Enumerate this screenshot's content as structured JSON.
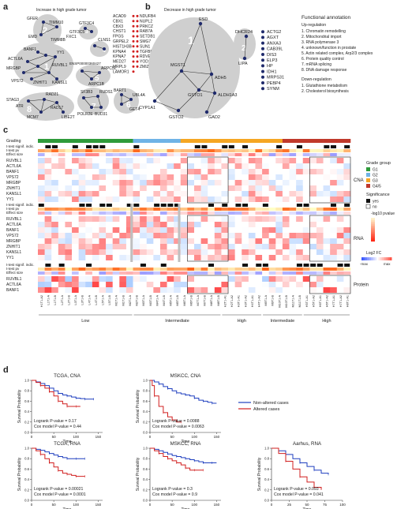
{
  "panel_labels": {
    "a": "a",
    "b": "b",
    "c": "c",
    "d": "d"
  },
  "panel_a": {
    "title": "Increase in high grade tumor",
    "cluster_numbers": [
      "2",
      "1",
      "5",
      "8",
      "3",
      "4",
      "7",
      "6"
    ],
    "nodes": [
      "GFER",
      "TIMM10",
      "TIMM8B",
      "EMD",
      "FXC1",
      "GTF3C4",
      "GTF3C5",
      "CLNS1",
      "BANF1",
      "YY1",
      "RUVBL1",
      "ACTL6A",
      "MRGBP",
      "VPS72",
      "ZNHIT1",
      "KANSL1",
      "ENSP00000360427",
      "ARPC5L",
      "ARPC1B",
      "STAG3",
      "RAD21",
      "ATR",
      "RAD17",
      "MCM7",
      "LIBE2T",
      "SF3B3",
      "POLR2E",
      "RUDS1",
      "BART1",
      "BUD31",
      "UBL4A",
      "GET4"
    ],
    "annotations_col1": [
      "ACAD9",
      "CBX1",
      "CBX3",
      "CHST1",
      "FPGS",
      "GRPEL2",
      "HIST1H3B",
      "KPNA4",
      "KPNA7",
      "MED27",
      "MRPL9",
      "LAMOR1"
    ],
    "annotations_col2": [
      "NDUFB4",
      "NUPL2",
      "PRKCZ",
      "RAB7A",
      "SETDB1",
      "SMG7",
      "SUN1",
      "TGFBR1",
      "RDVE2",
      "YOD1",
      "ZMIZ2"
    ]
  },
  "panel_b": {
    "title": "Decrease in high grade tumor",
    "cluster_numbers": [
      "1",
      "2"
    ],
    "nodes": [
      "ESD",
      "MGST1",
      "ADH5",
      "GSTO1",
      "CYP1A1",
      "GSTO2",
      "ALDH1A3",
      "GAD2",
      "DHCR24",
      "LIPA"
    ],
    "legend_genes": [
      "ACTG2",
      "AGXT",
      "ANXA3",
      "CAB39L",
      "DIS3",
      "ELP3",
      "HP",
      "IDH1",
      "MRPS31",
      "PEBP4",
      "SYNM"
    ],
    "func_title": "Functional annotation",
    "up_label": "Up-regulation",
    "up_items": [
      "1. Chromatin remodelling",
      "2. Mitochondrial import",
      "3. RNA polymerase 3",
      "4. unknown/function in prostate",
      "5. Actin related complex, Arp2/3 complex",
      "6. Protein quality control",
      "7. mRNA splicing",
      "8. DNA damage response"
    ],
    "down_label": "Down-regulation",
    "down_items": [
      "1. Glutathione metabolism",
      "2. Cholesterol biosynthesis"
    ]
  },
  "panel_c": {
    "row_grading": "Grading",
    "row_sig": "t-test signif. indic.",
    "row_pv": "t-test pv",
    "row_es": "Effect size",
    "genes_cna": [
      "RUVBL1",
      "ACTL6A",
      "BANF1",
      "VPS72",
      "MRGBP",
      "ZNHIT1",
      "KANSL1",
      "YY1"
    ],
    "genes_rna": [
      "RUVBL1",
      "ACTL6A",
      "BANF1",
      "VPS72",
      "MRGBP",
      "ZNHIT1",
      "KANSL1",
      "YY1"
    ],
    "genes_protein": [
      "RUVBL1",
      "ACTL6A",
      "BANF1"
    ],
    "block_cna": "CNA",
    "block_rna": "RNA",
    "block_protein": "Protein",
    "grade_group_title": "Grade group",
    "grade_groups": [
      {
        "label": "G1",
        "color": "#2e9b3a"
      },
      {
        "label": "G2",
        "color": "#6fb3e6"
      },
      {
        "label": "G3",
        "color": "#f5a623"
      },
      {
        "label": "G4/5",
        "color": "#c0392b"
      }
    ],
    "significance_title": "Significance",
    "sig_yes": "yes",
    "sig_no": "no",
    "pval_label": "-log10 pvalue",
    "fc_label": "Log2 FC",
    "fc_min": "-max",
    "fc_max": "max",
    "bottom_groups": [
      "Low",
      "Intermediate",
      "High",
      "Intermediate",
      "High"
    ],
    "sample_labels": [
      "H1T1-A2",
      "L1T1-A",
      "L1T1-B",
      "L2T1-A",
      "L2T1-B",
      "L3T1-A",
      "L3T1-B",
      "L4T1-A",
      "L4T1-B",
      "L5T1-A",
      "L5T1-B",
      "M1T1-A",
      "M1T1-B",
      "M2T1-A",
      "M2T1-B",
      "M3T1-A",
      "M3T1-B",
      "M4T1-A",
      "M4T1-B",
      "M5T1-A",
      "M5T1-B",
      "M6T1-A",
      "M6T1-B",
      "M7T1-A",
      "M7T1-B",
      "M8T1-A",
      "M8T1-B",
      "H2T1-A1",
      "H2T1-A2",
      "H3T1-A1",
      "H3T1-A2",
      "H4T1-A1",
      "H4T1-A2",
      "M9T1-A",
      "M9T1-B",
      "M10T1-A",
      "M10T1-B",
      "M11T1-A",
      "M11T1-B",
      "H5T1-A1",
      "H5T1-A2",
      "H6T1-A1",
      "H6T1-A2",
      "H7T1-A1",
      "H7T1-A2",
      "H8T1-A1"
    ]
  },
  "panel_d": {
    "legend_non_altered": "Non-altered cases",
    "legend_altered": "Altered cases",
    "x_label": "Time",
    "y_label": "Survival Probability",
    "plots": [
      {
        "title": "TCGA, CNA",
        "logrank": "Logrank P-value = 0.17",
        "cox": "Cox model P-value = 0.44",
        "x_ticks": [
          "0",
          "50",
          "100",
          "150"
        ],
        "y_ticks": [
          "0.0",
          "0.2",
          "0.4",
          "0.6",
          "0.8",
          "1.0"
        ]
      },
      {
        "title": "MSKCC, CNA",
        "logrank": "Logrank P-value = 0.0088",
        "cox": "Cox model P-value = 0.0063",
        "x_ticks": [
          "0",
          "50",
          "100",
          "150"
        ],
        "y_ticks": [
          "0.0",
          "0.2",
          "0.4",
          "0.6",
          "0.8",
          "1.0"
        ]
      },
      {
        "title": "TCGA, RNA",
        "logrank": "Logrank P-value = 0.00021",
        "cox": "Cox model P-value = 0.0001",
        "x_ticks": [
          "0",
          "50",
          "100",
          "150"
        ],
        "y_ticks": [
          "0.0",
          "0.2",
          "0.4",
          "0.6",
          "0.8",
          "1.0"
        ]
      },
      {
        "title": "MSKCC, RNA",
        "logrank": "Logrank P-value = 0.3",
        "cox": "Cox model P-value = 0.9",
        "x_ticks": [
          "0",
          "50",
          "100",
          "150"
        ],
        "y_ticks": [
          "0.0",
          "0.2",
          "0.4",
          "0.6",
          "0.8",
          "1.0"
        ]
      },
      {
        "title": "Aarhus, RNA",
        "logrank": "Logrank P-value = 0.093",
        "cox": "Cox model P-value = 0.041",
        "x_ticks": [
          "0",
          "25",
          "50",
          "75",
          "100"
        ],
        "y_ticks": [
          "0.0",
          "0.2",
          "0.4",
          "0.6",
          "0.8",
          "1.0"
        ]
      }
    ]
  },
  "chart_data": [
    {
      "type": "line",
      "title": "TCGA, CNA",
      "xlabel": "Time",
      "ylabel": "Survival Probability",
      "xlim": [
        0,
        160
      ],
      "ylim": [
        0,
        1
      ],
      "series": [
        {
          "name": "Non-altered cases",
          "x": [
            0,
            10,
            20,
            30,
            40,
            50,
            60,
            70,
            80,
            90,
            100,
            110,
            120,
            130,
            140
          ],
          "y": [
            1.0,
            0.97,
            0.94,
            0.9,
            0.85,
            0.8,
            0.75,
            0.72,
            0.7,
            0.68,
            0.66,
            0.65,
            0.64,
            0.64,
            0.64
          ]
        },
        {
          "name": "Altered cases",
          "x": [
            0,
            10,
            20,
            30,
            40,
            50,
            60,
            70,
            80,
            90,
            100,
            110
          ],
          "y": [
            1.0,
            0.96,
            0.9,
            0.85,
            0.78,
            0.7,
            0.6,
            0.55,
            0.5,
            0.5,
            0.5,
            0.5
          ]
        }
      ]
    },
    {
      "type": "line",
      "title": "MSKCC, CNA",
      "xlabel": "Time",
      "ylabel": "Survival Probability",
      "xlim": [
        0,
        160
      ],
      "ylim": [
        0,
        1
      ],
      "series": [
        {
          "name": "Non-altered cases",
          "x": [
            0,
            10,
            20,
            30,
            40,
            50,
            60,
            70,
            80,
            90,
            100,
            110,
            120,
            130,
            140,
            150
          ],
          "y": [
            1.0,
            0.97,
            0.93,
            0.88,
            0.84,
            0.8,
            0.76,
            0.74,
            0.72,
            0.7,
            0.66,
            0.62,
            0.6,
            0.58,
            0.56,
            0.56
          ]
        },
        {
          "name": "Altered cases",
          "x": [
            0,
            5,
            10,
            20,
            30,
            40,
            50,
            60,
            70
          ],
          "y": [
            1.0,
            0.9,
            0.7,
            0.5,
            0.38,
            0.3,
            0.24,
            0.2,
            0.2
          ]
        }
      ]
    },
    {
      "type": "line",
      "title": "TCGA, RNA",
      "xlabel": "Time",
      "ylabel": "Survival Probability",
      "xlim": [
        0,
        160
      ],
      "ylim": [
        0,
        1
      ],
      "series": [
        {
          "name": "Non-altered cases",
          "x": [
            0,
            10,
            20,
            30,
            40,
            50,
            60,
            70,
            80,
            90,
            100,
            110,
            120
          ],
          "y": [
            1.0,
            0.98,
            0.96,
            0.93,
            0.9,
            0.87,
            0.84,
            0.82,
            0.8,
            0.8,
            0.8,
            0.8,
            0.8
          ]
        },
        {
          "name": "Altered cases",
          "x": [
            0,
            10,
            20,
            30,
            40,
            50,
            60,
            70,
            80,
            90,
            100,
            110,
            120
          ],
          "y": [
            1.0,
            0.95,
            0.88,
            0.8,
            0.72,
            0.64,
            0.57,
            0.52,
            0.5,
            0.48,
            0.46,
            0.46,
            0.46
          ]
        }
      ]
    },
    {
      "type": "line",
      "title": "MSKCC, RNA",
      "xlabel": "Time",
      "ylabel": "Survival Probability",
      "xlim": [
        0,
        160
      ],
      "ylim": [
        0,
        1
      ],
      "series": [
        {
          "name": "Non-altered cases",
          "x": [
            0,
            10,
            20,
            30,
            40,
            50,
            60,
            70,
            80,
            90,
            100,
            110,
            120,
            130,
            140,
            150
          ],
          "y": [
            1.0,
            0.98,
            0.95,
            0.92,
            0.89,
            0.86,
            0.84,
            0.82,
            0.8,
            0.78,
            0.76,
            0.74,
            0.72,
            0.72,
            0.72,
            0.72
          ]
        },
        {
          "name": "Altered cases",
          "x": [
            0,
            10,
            20,
            30,
            40,
            50,
            60,
            70,
            80,
            90,
            100,
            110,
            120
          ],
          "y": [
            1.0,
            0.95,
            0.9,
            0.84,
            0.8,
            0.76,
            0.72,
            0.68,
            0.62,
            0.58,
            0.58,
            0.58,
            0.58
          ]
        }
      ]
    },
    {
      "type": "line",
      "title": "Aarhus, RNA",
      "xlabel": "Time",
      "ylabel": "Survival Probability",
      "xlim": [
        0,
        100
      ],
      "ylim": [
        0,
        1
      ],
      "series": [
        {
          "name": "Non-altered cases",
          "x": [
            0,
            10,
            20,
            30,
            40,
            50,
            60,
            70,
            80
          ],
          "y": [
            1.0,
            0.95,
            0.88,
            0.8,
            0.72,
            0.65,
            0.58,
            0.52,
            0.5
          ]
        },
        {
          "name": "Altered cases",
          "x": [
            0,
            10,
            20,
            30,
            40,
            50,
            60,
            70
          ],
          "y": [
            1.0,
            0.9,
            0.75,
            0.6,
            0.45,
            0.35,
            0.25,
            0.2
          ]
        }
      ]
    }
  ]
}
